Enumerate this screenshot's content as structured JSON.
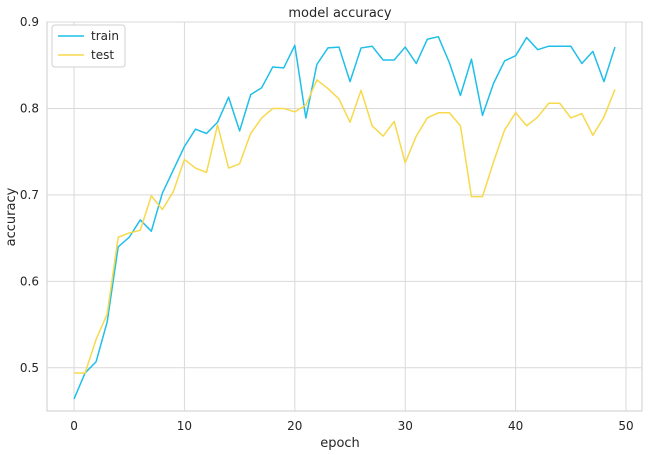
{
  "chart_data": {
    "type": "line",
    "title": "model accuracy",
    "xlabel": "epoch",
    "ylabel": "accuracy",
    "xlim": [
      -2.45,
      51.45
    ],
    "ylim": [
      0.45,
      0.9
    ],
    "xticks": [
      0,
      10,
      20,
      30,
      40,
      50
    ],
    "yticks": [
      0.5,
      0.6,
      0.7,
      0.8,
      0.9
    ],
    "grid": true,
    "legend_position": "upper-left",
    "x": [
      0,
      1,
      2,
      3,
      4,
      5,
      6,
      7,
      8,
      9,
      10,
      11,
      12,
      13,
      14,
      15,
      16,
      17,
      18,
      19,
      20,
      21,
      22,
      23,
      24,
      25,
      26,
      27,
      28,
      29,
      30,
      31,
      32,
      33,
      34,
      35,
      36,
      37,
      38,
      39,
      40,
      41,
      42,
      43,
      44,
      45,
      46,
      47,
      48,
      49
    ],
    "series": [
      {
        "name": "train",
        "color": "#1fbfea",
        "values": [
          0.464,
          0.494,
          0.507,
          0.553,
          0.64,
          0.651,
          0.671,
          0.658,
          0.702,
          0.729,
          0.756,
          0.776,
          0.771,
          0.784,
          0.813,
          0.774,
          0.816,
          0.824,
          0.848,
          0.847,
          0.873,
          0.789,
          0.851,
          0.87,
          0.871,
          0.831,
          0.87,
          0.872,
          0.856,
          0.856,
          0.871,
          0.852,
          0.88,
          0.883,
          0.853,
          0.815,
          0.857,
          0.792,
          0.829,
          0.855,
          0.861,
          0.882,
          0.868,
          0.872,
          0.872,
          0.872,
          0.852,
          0.866,
          0.831,
          0.871
        ]
      },
      {
        "name": "test",
        "color": "#f7d94c",
        "values": [
          0.494,
          0.494,
          0.533,
          0.562,
          0.651,
          0.656,
          0.659,
          0.699,
          0.683,
          0.704,
          0.741,
          0.731,
          0.726,
          0.781,
          0.731,
          0.736,
          0.771,
          0.789,
          0.8,
          0.8,
          0.796,
          0.804,
          0.833,
          0.823,
          0.811,
          0.784,
          0.821,
          0.78,
          0.768,
          0.785,
          0.737,
          0.768,
          0.789,
          0.795,
          0.795,
          0.78,
          0.698,
          0.698,
          0.738,
          0.775,
          0.795,
          0.78,
          0.79,
          0.806,
          0.806,
          0.789,
          0.794,
          0.769,
          0.79,
          0.822
        ]
      }
    ]
  }
}
